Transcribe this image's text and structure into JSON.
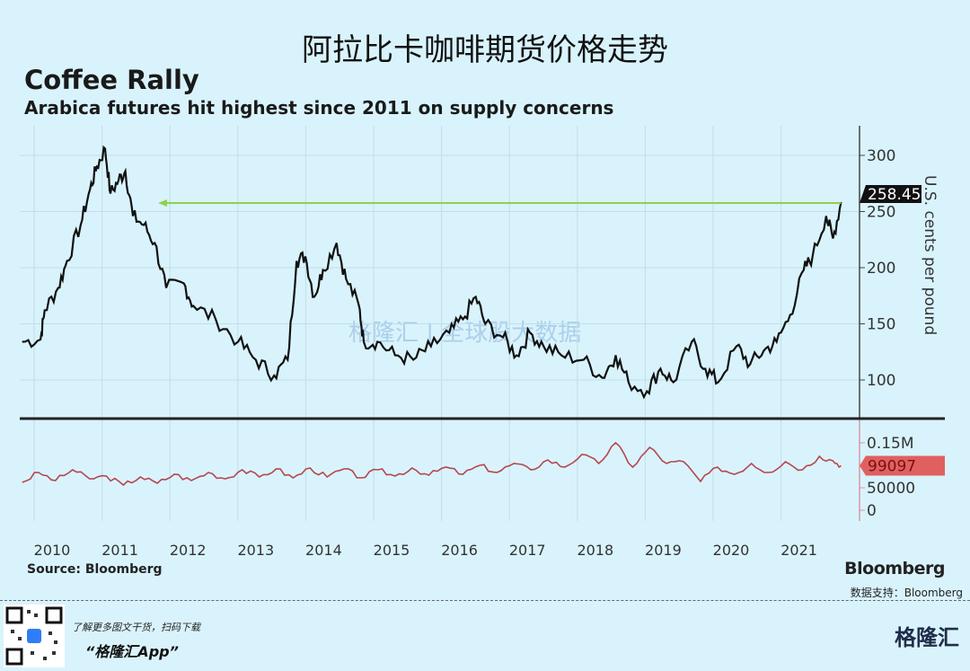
{
  "header": {
    "title": "阿拉比卡咖啡期货价格走势"
  },
  "chart_data": [
    {
      "type": "line",
      "title": "Coffee Rally",
      "subtitle": "Arabica futures hit highest since 2011 on supply concerns",
      "ylabel": "U.S. cents per pound",
      "ylim": [
        80,
        320
      ],
      "y_ticks": [
        "100",
        "150",
        "200",
        "250",
        "300"
      ],
      "x_ticks": [
        "2010",
        "2011",
        "2012",
        "2013",
        "2014",
        "2015",
        "2016",
        "2017",
        "2018",
        "2019",
        "2020",
        "2021"
      ],
      "last_value_label": "258.45",
      "annotation": "arrow from latest price back to 2011 level",
      "color": "#111111",
      "arrow_color": "#8fd14f",
      "x": [
        2009.56,
        2009.83,
        2009.89,
        2010.09,
        2010.22,
        2010.42,
        2010.56,
        2010.66,
        2010.78,
        2010.86,
        2010.98,
        2011.08,
        2011.19,
        2011.35,
        2011.51,
        2011.68,
        2011.94,
        2012.08,
        2012.41,
        2012.74,
        2013.0,
        2013.27,
        2013.47,
        2013.6,
        2013.73,
        2013.86,
        2013.99,
        2014.19,
        2014.33,
        2014.52,
        2014.59,
        2014.79,
        2015.05,
        2015.32,
        2015.58,
        2015.85,
        2016.05,
        2016.24,
        2016.38,
        2016.64,
        2016.84,
        2017.04,
        2017.24,
        2017.5,
        2017.83,
        2018.1,
        2018.3,
        2018.49,
        2018.76,
        2018.96,
        2019.15,
        2019.42,
        2019.62,
        2019.81,
        2020.08,
        2020.28,
        2020.48,
        2020.67,
        2020.87,
        2021.07,
        2021.2,
        2021.4,
        2021.5,
        2021.62
      ],
      "y": [
        134,
        136,
        162,
        182,
        206,
        238,
        270,
        290,
        306,
        266,
        278,
        286,
        246,
        238,
        222,
        182,
        186,
        166,
        154,
        134,
        118,
        104,
        118,
        206,
        210,
        174,
        198,
        222,
        190,
        166,
        134,
        134,
        122,
        118,
        130,
        142,
        154,
        174,
        150,
        138,
        122,
        142,
        130,
        122,
        118,
        102,
        122,
        98,
        90,
        110,
        98,
        134,
        110,
        98,
        130,
        114,
        126,
        134,
        158,
        198,
        210,
        246,
        226,
        258.45
      ]
    },
    {
      "type": "line",
      "y_ticks": [
        "0",
        "50000",
        "0.15M"
      ],
      "last_value_label": "99097",
      "color": "#b5474f",
      "label_color": "#e06060",
      "ylim": [
        0,
        170000
      ],
      "x": [
        2009.56,
        2009.8,
        2010.05,
        2010.3,
        2010.55,
        2010.8,
        2011.05,
        2011.3,
        2011.55,
        2011.8,
        2012.05,
        2012.3,
        2012.55,
        2012.8,
        2013.05,
        2013.3,
        2013.55,
        2013.8,
        2014.05,
        2014.3,
        2014.55,
        2014.8,
        2015.05,
        2015.3,
        2015.55,
        2015.8,
        2016.05,
        2016.3,
        2016.55,
        2016.8,
        2017.05,
        2017.3,
        2017.55,
        2017.8,
        2018.05,
        2018.3,
        2018.55,
        2018.8,
        2019.05,
        2019.3,
        2019.55,
        2019.8,
        2020.05,
        2020.3,
        2020.55,
        2020.8,
        2021.05,
        2021.3,
        2021.5,
        2021.62
      ],
      "y": [
        62000,
        84000,
        66000,
        90000,
        70000,
        76000,
        56000,
        74000,
        60000,
        80000,
        66000,
        84000,
        70000,
        90000,
        74000,
        92000,
        72000,
        94000,
        74000,
        92000,
        72000,
        90000,
        76000,
        94000,
        78000,
        96000,
        80000,
        100000,
        84000,
        104000,
        90000,
        112000,
        96000,
        124000,
        104000,
        150000,
        96000,
        140000,
        104000,
        108000,
        64000,
        96000,
        80000,
        104000,
        84000,
        108000,
        90000,
        120000,
        110000,
        99097
      ]
    }
  ],
  "footer": {
    "source": "Source: Bloomberg",
    "brand": "Bloomberg",
    "data_support": "数据支持：Bloomberg",
    "promo_line": "了解更多图文干货，扫码下载",
    "promo_app": "“格隆汇App”",
    "logo_text": "格隆汇",
    "watermark": "格隆汇 | 全球股大数据"
  }
}
